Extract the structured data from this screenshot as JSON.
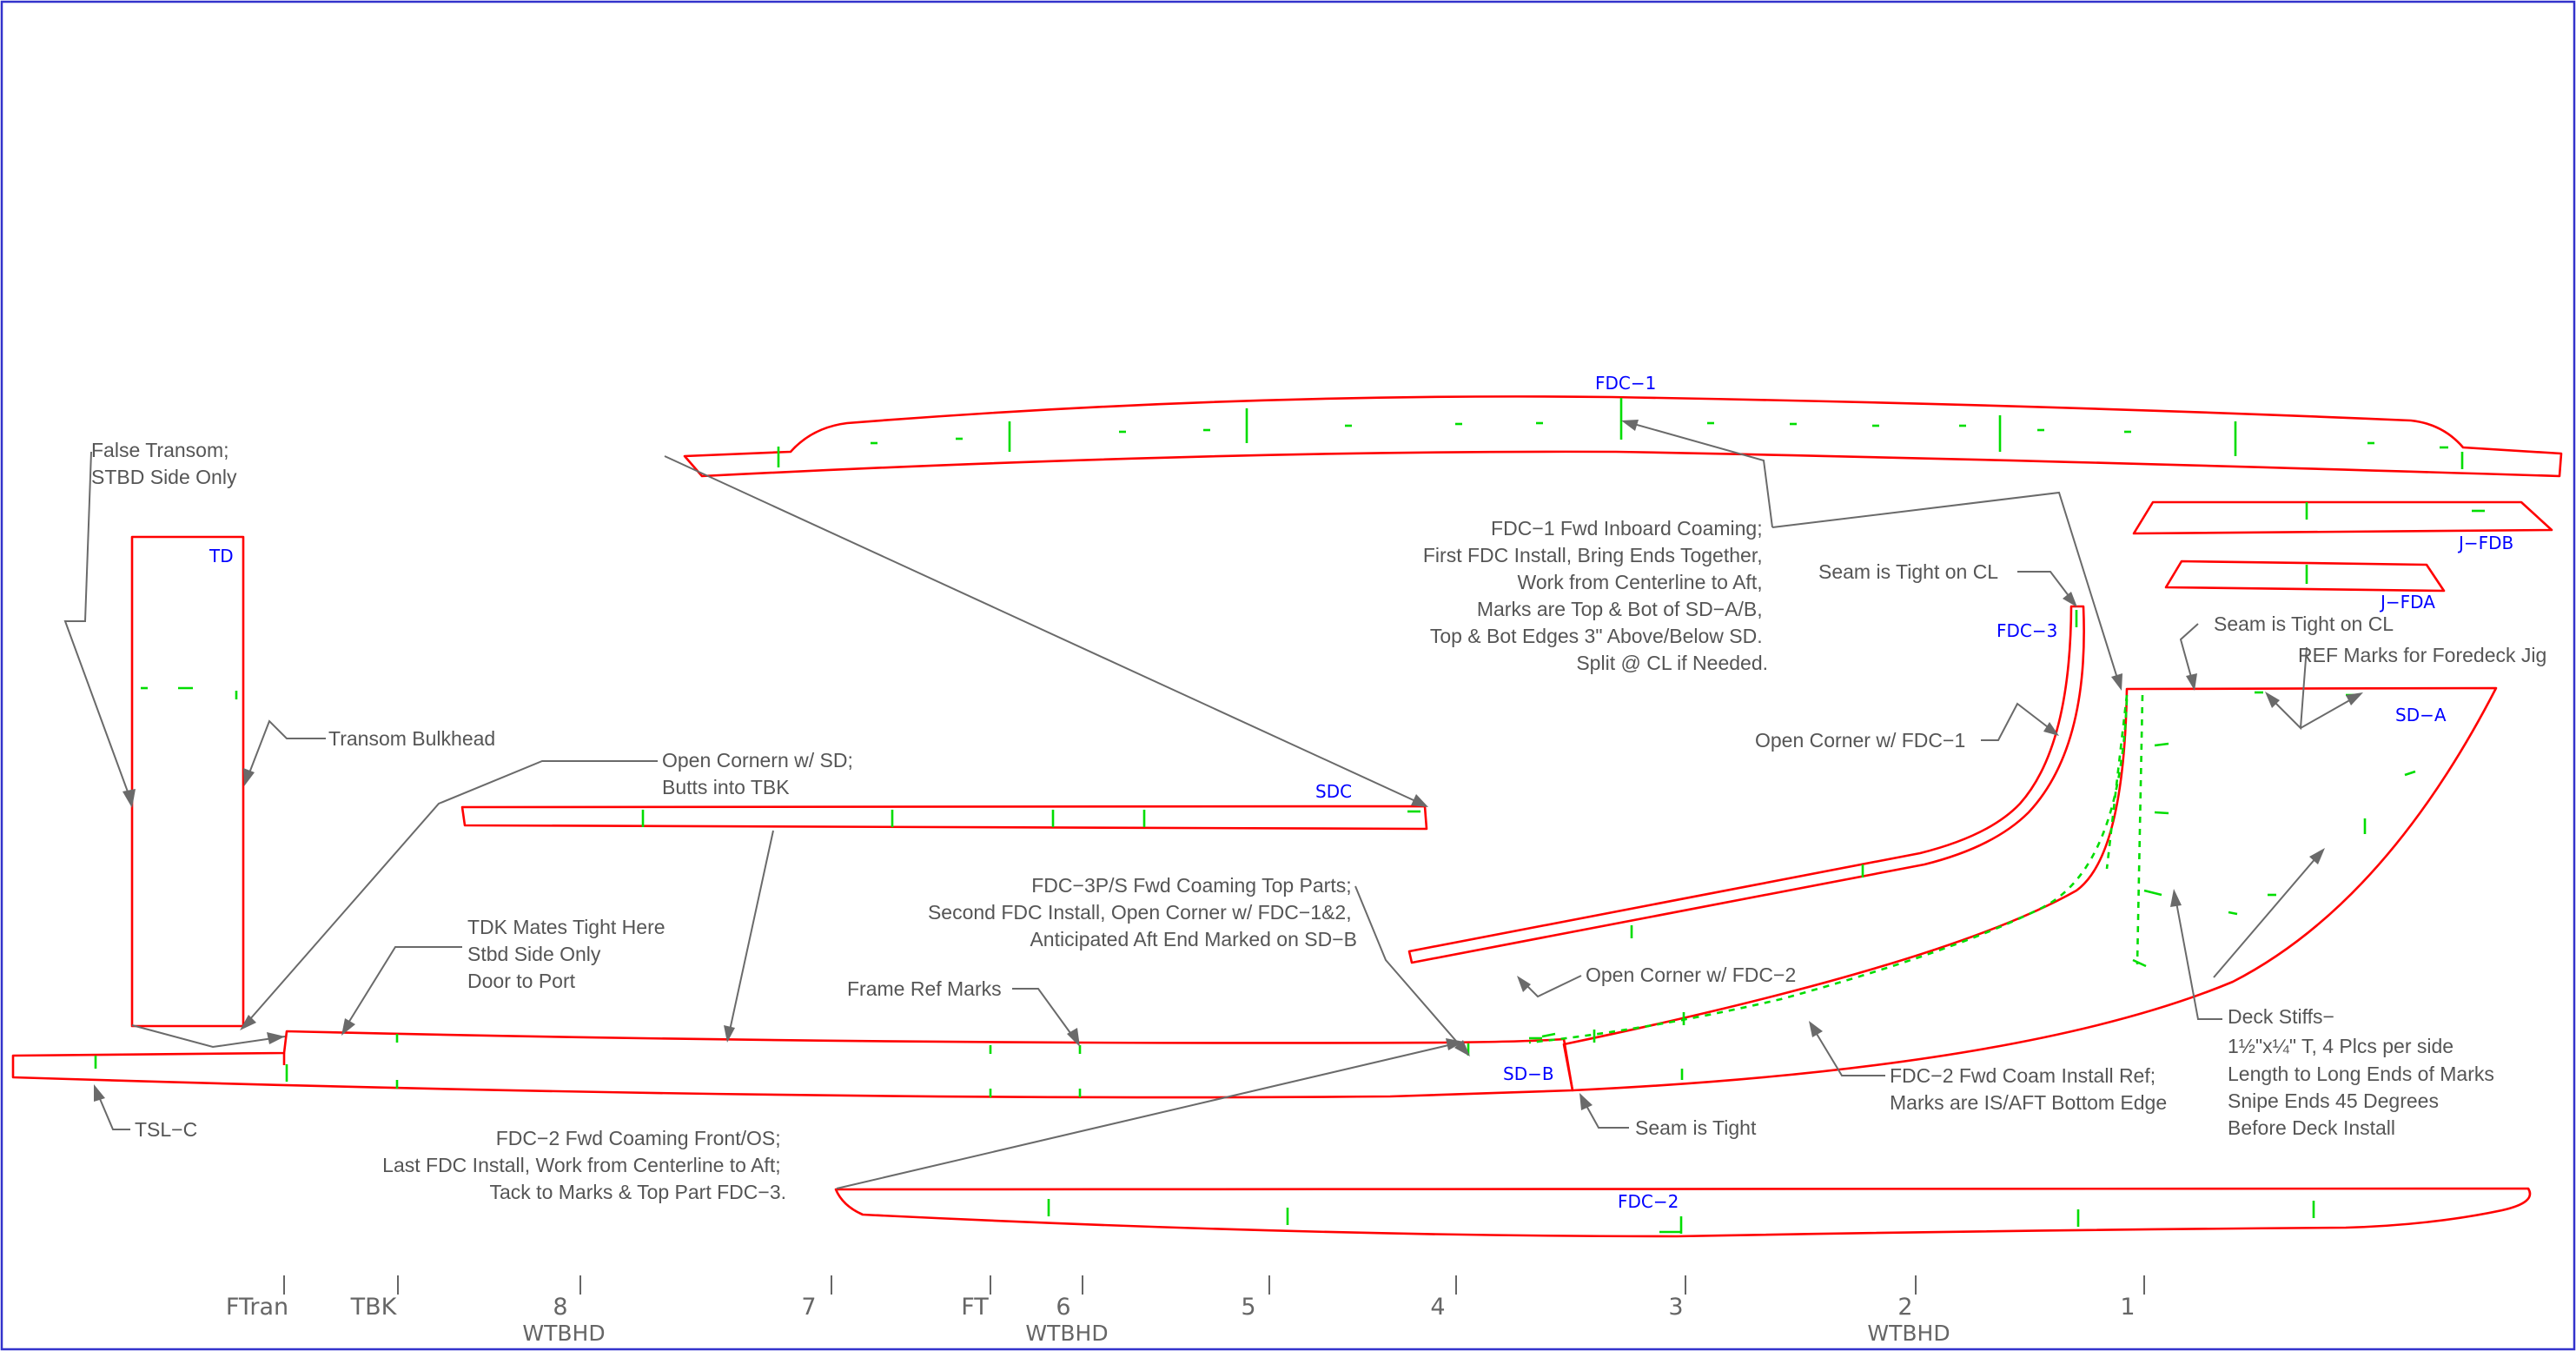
{
  "parts": {
    "td": "TD",
    "fdc1": "FDC−1",
    "jfdb": "J−FDB",
    "jfda": "J−FDA",
    "fdc3": "FDC−3",
    "sda": "SD−A",
    "sdc": "SDC",
    "sdb": "SD−B",
    "fdc2": "FDC−2"
  },
  "notes": {
    "false_transom": [
      "False Transom;",
      "STBD Side Only"
    ],
    "transom_bulkhead": [
      "Transom Bulkhead"
    ],
    "open_corner_sd": [
      "Open Cornern w/ SD;",
      "Butts into TBK"
    ],
    "tdk_mates": [
      "TDK Mates Tight Here",
      "Stbd Side Only",
      "Door to Port"
    ],
    "frame_ref": [
      "Frame Ref Marks"
    ],
    "tsl_c": [
      "TSL−C"
    ],
    "fdc2_front": [
      "FDC−2 Fwd Coaming Front/OS;",
      "Last FDC Install, Work from Centerline to Aft;",
      "Tack to Marks & Top Part FDC−3."
    ],
    "fdc3_top": [
      "FDC−3P/S Fwd Coaming Top Parts;",
      "Second FDC Install, Open Corner w/ FDC−1&2,",
      "Anticipated Aft End Marked on SD−B"
    ],
    "fdc1_inboard": [
      "FDC−1 Fwd Inboard Coaming;",
      "First FDC Install, Bring Ends Together,",
      "Work from Centerline to Aft,",
      "Marks are Top & Bot of SD−A/B,",
      "Top & Bot Edges 3\" Above/Below SD.",
      "Split @ CL if Needed."
    ],
    "seam_tight_cl_1": [
      "Seam is Tight on CL"
    ],
    "seam_tight_cl_2": [
      "Seam is Tight on CL"
    ],
    "ref_marks_foredeck": [
      "REF Marks for Foredeck Jig"
    ],
    "open_corner_fdc1": [
      "Open Corner w/ FDC−1"
    ],
    "open_corner_fdc2": [
      "Open Corner w/ FDC−2"
    ],
    "seam_tight": [
      "Seam is Tight"
    ],
    "fdc2_install_ref": [
      "FDC−2 Fwd Coam Install Ref;",
      "Marks are IS/AFT Bottom Edge"
    ],
    "deck_stiffs_title": "Deck Stiffs−",
    "deck_stiffs_spec": "1½\"x¼\" T, 4 Plcs per side",
    "deck_stiffs_more": [
      "Length to Long Ends of Marks",
      "Snipe Ends 45 Degrees",
      "Before Deck Install"
    ]
  },
  "stations": [
    {
      "label": "FTran",
      "sub": ""
    },
    {
      "label": "TBK",
      "sub": ""
    },
    {
      "label": "8",
      "sub": "WTBHD"
    },
    {
      "label": "7",
      "sub": ""
    },
    {
      "label": "FT",
      "sub": ""
    },
    {
      "label": "6",
      "sub": "WTBHD"
    },
    {
      "label": "5",
      "sub": ""
    },
    {
      "label": "4",
      "sub": ""
    },
    {
      "label": "3",
      "sub": ""
    },
    {
      "label": "2",
      "sub": "WTBHD"
    },
    {
      "label": "1",
      "sub": ""
    }
  ],
  "colors": {
    "part_outline": "#ff0000",
    "ref_marks": "#00dd00",
    "part_label": "#0000ff",
    "annotation": "#555555",
    "border": "#3333cc"
  }
}
